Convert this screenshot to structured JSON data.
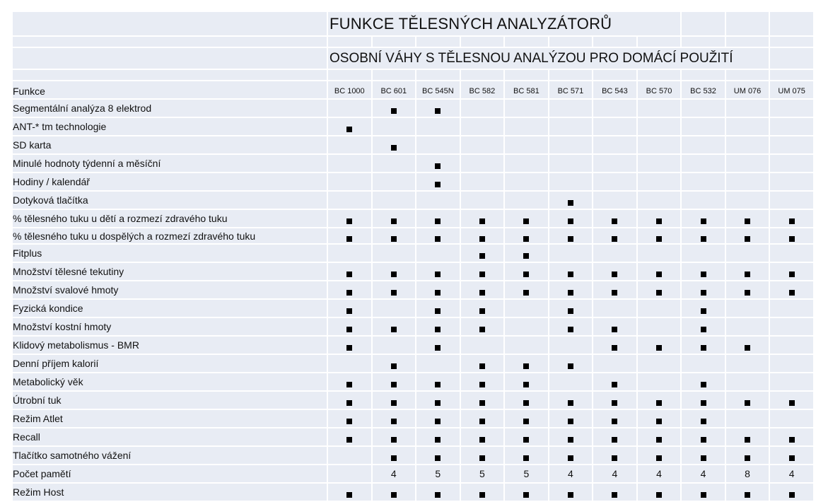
{
  "title": "FUNKCE TĚLESNÝCH ANALYZÁTORŮ",
  "subtitle": "OSOBNÍ VÁHY S TĚLESNOU ANALÝZOU PRO DOMÁCÍ POUŽITÍ",
  "header_label": "Funkce",
  "models": [
    "BC 1000",
    "BC 601",
    "BC 545N",
    "BC 582",
    "BC 581",
    "BC 571",
    "BC 543",
    "BC 570",
    "BC 532",
    "UM 076",
    "UM 075"
  ],
  "mark_icon": "black-square-icon",
  "rows": [
    {
      "label": "Segmentální analýza 8 elektrod",
      "cells": [
        "",
        "x",
        "x",
        "",
        "",
        "",
        "",
        "",
        "",
        "",
        ""
      ]
    },
    {
      "label": "ANT-* tm technologie",
      "cells": [
        "x",
        "",
        "",
        "",
        "",
        "",
        "",
        "",
        "",
        "",
        ""
      ]
    },
    {
      "label": "SD karta",
      "cells": [
        "",
        "x",
        "",
        "",
        "",
        "",
        "",
        "",
        "",
        "",
        ""
      ]
    },
    {
      "label": "Minulé hodnoty týdenní a měsíční",
      "cells": [
        "",
        "",
        "x",
        "",
        "",
        "",
        "",
        "",
        "",
        "",
        ""
      ]
    },
    {
      "label": "Hodiny / kalendář",
      "cells": [
        "",
        "",
        "x",
        "",
        "",
        "",
        "",
        "",
        "",
        "",
        ""
      ]
    },
    {
      "label": "Dotyková tlačítka",
      "cells": [
        "",
        "",
        "",
        "",
        "",
        "x",
        "",
        "",
        "",
        "",
        ""
      ]
    },
    {
      "label": "% tělesného tuku u dětí a rozmezí zdravého tuku",
      "cells": [
        "x",
        "x",
        "x",
        "x",
        "x",
        "x",
        "x",
        "x",
        "x",
        "x",
        "x"
      ]
    },
    {
      "label": "% tělesného tuku u dospělých a rozmezí zdravého tuku",
      "cells": [
        "x",
        "x",
        "x",
        "x",
        "x",
        "x",
        "x",
        "x",
        "x",
        "x",
        "x"
      ]
    },
    {
      "label": "Fitplus",
      "cells": [
        "",
        "",
        "",
        "x",
        "x",
        "",
        "",
        "",
        "",
        "",
        ""
      ]
    },
    {
      "label": "Množství tělesné tekutiny",
      "cells": [
        "x",
        "x",
        "x",
        "x",
        "x",
        "x",
        "x",
        "x",
        "x",
        "x",
        "x"
      ]
    },
    {
      "label": "Množství svalové hmoty",
      "cells": [
        "x",
        "x",
        "x",
        "x",
        "x",
        "x",
        "x",
        "x",
        "x",
        "x",
        "x"
      ]
    },
    {
      "label": "Fyzická kondice",
      "cells": [
        "x",
        "",
        "x",
        "x",
        "",
        "x",
        "",
        "",
        "x",
        "",
        ""
      ]
    },
    {
      "label": "Množství kostní hmoty",
      "cells": [
        "x",
        "x",
        "x",
        "x",
        "",
        "x",
        "x",
        "",
        "x",
        "",
        ""
      ]
    },
    {
      "label": "Klidový metabolismus - BMR",
      "cells": [
        "x",
        "",
        "x",
        "",
        "",
        "",
        "x",
        "x",
        "x",
        "x",
        ""
      ]
    },
    {
      "label": "Denní příjem kalorií",
      "cells": [
        "",
        "x",
        "",
        "x",
        "x",
        "x",
        "",
        "",
        "",
        "",
        ""
      ]
    },
    {
      "label": "Metabolický věk",
      "cells": [
        "x",
        "x",
        "x",
        "x",
        "x",
        "",
        "x",
        "",
        "x",
        "",
        ""
      ]
    },
    {
      "label": "Útrobní tuk",
      "cells": [
        "x",
        "x",
        "x",
        "x",
        "x",
        "x",
        "x",
        "x",
        "x",
        "x",
        "x"
      ]
    },
    {
      "label": "Režim Atlet",
      "cells": [
        "x",
        "x",
        "x",
        "x",
        "x",
        "x",
        "x",
        "x",
        "x",
        "",
        ""
      ]
    },
    {
      "label": "Recall",
      "cells": [
        "x",
        "x",
        "x",
        "x",
        "x",
        "x",
        "x",
        "x",
        "x",
        "x",
        "x"
      ]
    },
    {
      "label": "Tlačítko samotného vážení",
      "cells": [
        "",
        "x",
        "x",
        "x",
        "x",
        "x",
        "x",
        "x",
        "x",
        "x",
        "x"
      ]
    },
    {
      "label": "Počet pamětí",
      "cells": [
        "",
        "4",
        "5",
        "5",
        "5",
        "4",
        "4",
        "4",
        "4",
        "8",
        "4"
      ]
    },
    {
      "label": "Režim Host",
      "cells": [
        "x",
        "x",
        "x",
        "x",
        "x",
        "x",
        "x",
        "x",
        "x",
        "x",
        "x"
      ]
    }
  ]
}
